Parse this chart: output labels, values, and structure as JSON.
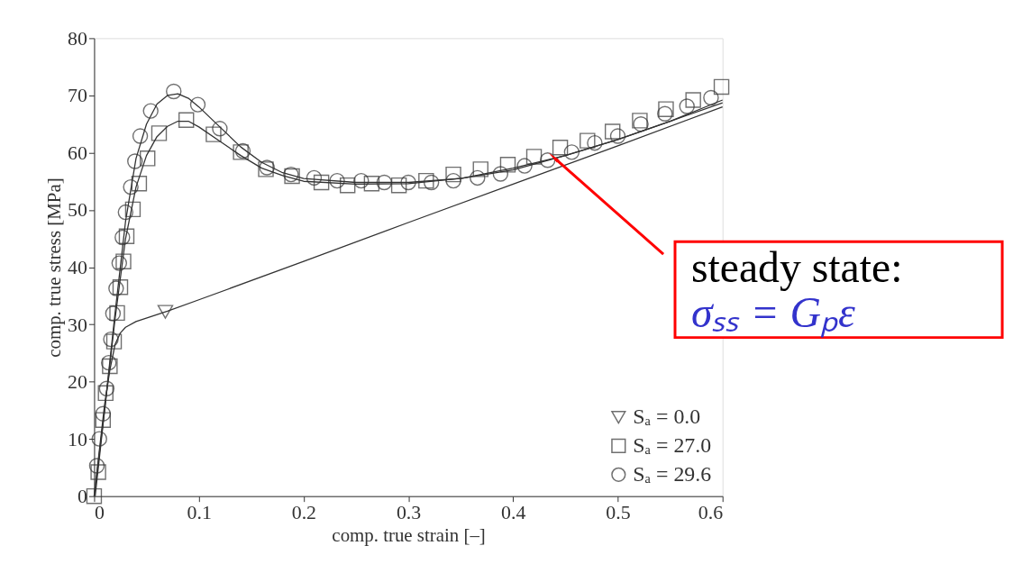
{
  "chart_data": {
    "type": "scatter",
    "xlabel": "comp. true strain [–]",
    "ylabel": "comp. true stress [MPa]",
    "xlim": [
      0,
      0.6
    ],
    "xticks": [
      0,
      0.1,
      0.2,
      0.3,
      0.4,
      0.5,
      0.6
    ],
    "ylim": [
      0,
      80
    ],
    "yticks": [
      0,
      10,
      20,
      30,
      40,
      50,
      60,
      70,
      80
    ],
    "grid": false,
    "legend": "bottom right",
    "series": [
      {
        "type": "line",
        "color": "#333333",
        "x": [
          0,
          0.005,
          0.01,
          0.015,
          0.02,
          0.025,
          0.03,
          0.04,
          0.07,
          0.1,
          0.2,
          0.3,
          0.4,
          0.5,
          0.6
        ],
        "values": [
          0,
          8,
          16,
          22,
          26.5,
          28.5,
          29.5,
          30.5,
          32.3,
          34.3,
          41,
          47.8,
          54.5,
          61.2,
          68
        ]
      },
      {
        "type": "line",
        "color": "#333333",
        "x": [
          0.001,
          0.01,
          0.02,
          0.03,
          0.04,
          0.05,
          0.06,
          0.07,
          0.08,
          0.09,
          0.1,
          0.12,
          0.14,
          0.16,
          0.18,
          0.2,
          0.25,
          0.3,
          0.35,
          0.4,
          0.45,
          0.5,
          0.55,
          0.6
        ],
        "values": [
          0,
          15,
          31,
          45,
          54,
          59.5,
          62.8,
          64.6,
          65.5,
          65.5,
          64.5,
          62,
          59.5,
          57.3,
          56,
          55,
          54.5,
          54.6,
          55.5,
          57.3,
          59.5,
          62.3,
          65.5,
          69.2
        ]
      },
      {
        "type": "line",
        "color": "#333333",
        "x": [
          0,
          0.01,
          0.02,
          0.03,
          0.04,
          0.05,
          0.06,
          0.07,
          0.08,
          0.09,
          0.1,
          0.12,
          0.14,
          0.16,
          0.18,
          0.2,
          0.25,
          0.3,
          0.35,
          0.4,
          0.45,
          0.5,
          0.55,
          0.6
        ],
        "values": [
          0,
          15,
          32,
          48,
          59,
          65,
          68.5,
          70,
          70.3,
          69.5,
          68,
          64.5,
          61,
          58.3,
          56.5,
          55.5,
          54.8,
          54.8,
          55.5,
          57,
          59.5,
          62.3,
          65.5,
          68.7
        ]
      },
      {
        "name": "Sₐ = 0.0",
        "color": "#333333",
        "marker": "triangle",
        "x": [
          0.068
        ],
        "values": [
          32.2
        ]
      },
      {
        "name": "Sₐ = 27.0",
        "color": "#333333",
        "marker": "square",
        "x": [
          0,
          0.004,
          0.0085,
          0.011,
          0.015,
          0.019,
          0.022,
          0.025,
          0.028,
          0.031,
          0.037,
          0.043,
          0.051,
          0.062,
          0.088,
          0.114,
          0.14,
          0.164,
          0.189,
          0.217,
          0.242,
          0.265,
          0.291,
          0.317,
          0.343,
          0.369,
          0.395,
          0.42,
          0.445,
          0.471,
          0.495,
          0.521,
          0.546,
          0.572,
          0.599
        ],
        "values": [
          0,
          4.2,
          13.3,
          18,
          22.7,
          27,
          32,
          36.5,
          41,
          45.4,
          50.1,
          54.6,
          59,
          63.4,
          65.7,
          63.2,
          60.1,
          57.1,
          55.9,
          54.8,
          54.3,
          54.6,
          54.3,
          55.1,
          56.2,
          57.1,
          57.9,
          59.3,
          60.9,
          62.1,
          63.7,
          65.6,
          67.6,
          69.2,
          71.5
        ]
      },
      {
        "name": "Sₐ = 29.6",
        "color": "#333333",
        "marker": "circle",
        "x": [
          0.0026,
          0.005,
          0.0085,
          0.012,
          0.014,
          0.016,
          0.018,
          0.021,
          0.024,
          0.027,
          0.03,
          0.035,
          0.039,
          0.044,
          0.054,
          0.076,
          0.099,
          0.12,
          0.142,
          0.165,
          0.188,
          0.21,
          0.232,
          0.255,
          0.277,
          0.3,
          0.322,
          0.343,
          0.366,
          0.388,
          0.411,
          0.433,
          0.456,
          0.478,
          0.5,
          0.522,
          0.545,
          0.566,
          0.589
        ],
        "values": [
          5.3,
          10,
          14.4,
          18.8,
          23.3,
          27.4,
          31.9,
          36.3,
          40.7,
          45.2,
          49.6,
          54,
          58.5,
          62.9,
          67.3,
          70.7,
          68.4,
          64.2,
          60.3,
          57.4,
          56.2,
          55.6,
          55.1,
          55.1,
          54.8,
          54.8,
          54.8,
          55.1,
          55.6,
          56.3,
          57.7,
          58.7,
          60.1,
          61.7,
          62.9,
          65,
          66.8,
          68.1,
          69.6
        ]
      }
    ],
    "annotations": [
      {
        "text": "steady state:",
        "x": 0.44,
        "y": 59
      },
      "σₛₛ = Gₚε"
    ]
  }
}
